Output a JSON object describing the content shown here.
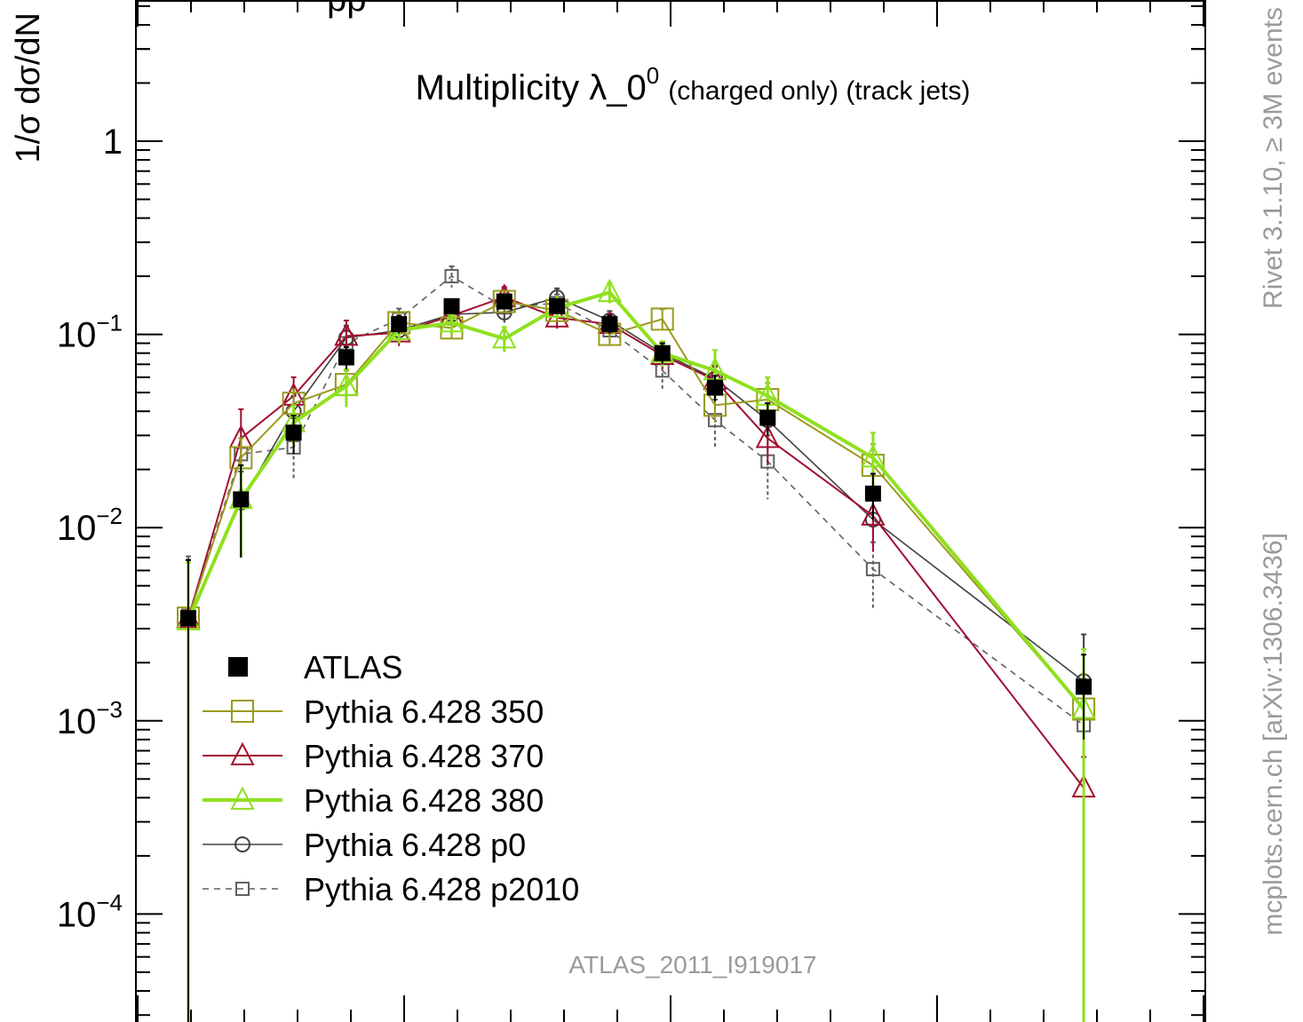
{
  "chart_data": {
    "type": "line",
    "title": "Multiplicity λ_0",
    "title_superscript": "0",
    "title_suffix": "(charged only) (track jets)",
    "header_partial": "pp",
    "ylabel": "1/σ dσ/dN",
    "y_scale": "log",
    "ylim": [
      3e-05,
      5
    ],
    "xlim": [
      0,
      21
    ],
    "y_tick_labels": [
      {
        "base": "1",
        "exp": "",
        "value": 1
      },
      {
        "base": "10",
        "exp": "−1",
        "value": 0.1
      },
      {
        "base": "10",
        "exp": "−2",
        "value": 0.01
      },
      {
        "base": "10",
        "exp": "−3",
        "value": 0.001
      },
      {
        "base": "10",
        "exp": "−4",
        "value": 0.0001
      }
    ],
    "grid": false,
    "legend_position": "bottom-left",
    "watermark": "ATLAS_2011_I919017",
    "side_text_top": "Rivet 3.1.10, ≥ 3M events",
    "side_text_bottom": "mcplots.cern.ch [arXiv:1306.3436]",
    "series": [
      {
        "name": "ATLAS",
        "color": "#000000",
        "marker": "filled-square",
        "line": "none",
        "points": [
          {
            "x": 1,
            "y": 0.0034,
            "err": [
              0.0034,
              0.0034
            ]
          },
          {
            "x": 2,
            "y": 0.014,
            "err": [
              0.007,
              0.007
            ]
          },
          {
            "x": 3,
            "y": 0.031,
            "err": [
              0.007,
              0.007
            ]
          },
          {
            "x": 4,
            "y": 0.076,
            "err": [
              0.01,
              0.01
            ]
          },
          {
            "x": 5,
            "y": 0.113,
            "err": [
              0.012,
              0.012
            ]
          },
          {
            "x": 6,
            "y": 0.14,
            "err": [
              0.012,
              0.012
            ]
          },
          {
            "x": 7,
            "y": 0.148,
            "err": [
              0.012,
              0.012
            ]
          },
          {
            "x": 8,
            "y": 0.14,
            "err": [
              0.012,
              0.012
            ]
          },
          {
            "x": 9,
            "y": 0.113,
            "err": [
              0.012,
              0.012
            ]
          },
          {
            "x": 10,
            "y": 0.08,
            "err": [
              0.01,
              0.01
            ]
          },
          {
            "x": 11,
            "y": 0.053,
            "err": [
              0.008,
              0.008
            ]
          },
          {
            "x": 12,
            "y": 0.037,
            "err": [
              0.007,
              0.007
            ]
          },
          {
            "x": 14,
            "y": 0.015,
            "err": [
              0.004,
              0.004
            ]
          },
          {
            "x": 18,
            "y": 0.0015,
            "err": [
              0.0007,
              0.0007
            ]
          }
        ]
      },
      {
        "name": "Pythia 6.428 350",
        "color": "#9a9a1e",
        "marker": "open-square",
        "line": "solid",
        "points": [
          {
            "x": 1,
            "y": 0.0034,
            "err": [
              0.0034,
              0.0034
            ]
          },
          {
            "x": 2,
            "y": 0.023,
            "err": [
              0.006,
              0.006
            ]
          },
          {
            "x": 3,
            "y": 0.044,
            "err": [
              0.008,
              0.008
            ]
          },
          {
            "x": 4,
            "y": 0.055,
            "err": [
              0.01,
              0.01
            ]
          },
          {
            "x": 5,
            "y": 0.115,
            "err": [
              0.015,
              0.015
            ]
          },
          {
            "x": 6,
            "y": 0.108,
            "err": [
              0.012,
              0.012
            ]
          },
          {
            "x": 7,
            "y": 0.148,
            "err": [
              0.015,
              0.015
            ]
          },
          {
            "x": 8,
            "y": 0.133,
            "err": [
              0.014,
              0.014
            ]
          },
          {
            "x": 9,
            "y": 0.1,
            "err": [
              0.012,
              0.012
            ]
          },
          {
            "x": 10,
            "y": 0.12,
            "err": [
              0.015,
              0.015
            ]
          },
          {
            "x": 11,
            "y": 0.043,
            "err": [
              0.008,
              0.008
            ]
          },
          {
            "x": 12,
            "y": 0.046,
            "err": [
              0.01,
              0.01
            ]
          },
          {
            "x": 14,
            "y": 0.021,
            "err": [
              0.006,
              0.006
            ]
          },
          {
            "x": 18,
            "y": 0.00115,
            "err": [
              0.0006,
              0.0006
            ]
          }
        ]
      },
      {
        "name": "Pythia 6.428 370",
        "color": "#a01030",
        "marker": "open-triangle",
        "line": "solid",
        "points": [
          {
            "x": 1,
            "y": 0.0034,
            "err": [
              0.0034,
              0.0034
            ]
          },
          {
            "x": 2,
            "y": 0.029,
            "err": [
              0.012,
              0.012
            ]
          },
          {
            "x": 3,
            "y": 0.048,
            "err": [
              0.012,
              0.012
            ]
          },
          {
            "x": 4,
            "y": 0.098,
            "err": [
              0.02,
              0.02
            ]
          },
          {
            "x": 5,
            "y": 0.102,
            "err": [
              0.015,
              0.015
            ]
          },
          {
            "x": 6,
            "y": 0.125,
            "err": [
              0.015,
              0.015
            ]
          },
          {
            "x": 7,
            "y": 0.156,
            "err": [
              0.02,
              0.02
            ]
          },
          {
            "x": 8,
            "y": 0.122,
            "err": [
              0.015,
              0.015
            ]
          },
          {
            "x": 9,
            "y": 0.113,
            "err": [
              0.014,
              0.014
            ]
          },
          {
            "x": 10,
            "y": 0.078,
            "err": [
              0.012,
              0.012
            ]
          },
          {
            "x": 11,
            "y": 0.058,
            "err": [
              0.01,
              0.01
            ]
          },
          {
            "x": 12,
            "y": 0.029,
            "err": [
              0.008,
              0.008
            ]
          },
          {
            "x": 14,
            "y": 0.0115,
            "err": [
              0.004,
              0.004
            ]
          },
          {
            "x": 18,
            "y": 0.00045,
            "err": [
              0.0002,
              0.0002
            ]
          }
        ]
      },
      {
        "name": "Pythia 6.428 380",
        "color": "#8fe01e",
        "marker": "open-triangle",
        "line": "solid-thick",
        "points": [
          {
            "x": 1,
            "y": 0.0033,
            "err": [
              0.00329,
              0.0033
            ]
          },
          {
            "x": 2,
            "y": 0.014,
            "err": [
              0.007,
              0.007
            ]
          },
          {
            "x": 3,
            "y": 0.035,
            "err": [
              0.008,
              0.008
            ]
          },
          {
            "x": 4,
            "y": 0.054,
            "err": [
              0.012,
              0.012
            ]
          },
          {
            "x": 5,
            "y": 0.105,
            "err": [
              0.015,
              0.015
            ]
          },
          {
            "x": 6,
            "y": 0.115,
            "err": [
              0.015,
              0.015
            ]
          },
          {
            "x": 7,
            "y": 0.095,
            "err": [
              0.014,
              0.014
            ]
          },
          {
            "x": 8,
            "y": 0.137,
            "err": [
              0.016,
              0.016
            ]
          },
          {
            "x": 9,
            "y": 0.165,
            "err": [
              0.02,
              0.02
            ]
          },
          {
            "x": 10,
            "y": 0.08,
            "err": [
              0.012,
              0.012
            ]
          },
          {
            "x": 11,
            "y": 0.065,
            "err": [
              0.018,
              0.018
            ]
          },
          {
            "x": 12,
            "y": 0.048,
            "err": [
              0.012,
              0.012
            ]
          },
          {
            "x": 14,
            "y": 0.023,
            "err": [
              0.008,
              0.008
            ]
          },
          {
            "x": 18,
            "y": 0.00115,
            "err": [
              0.00114,
              0.0012
            ]
          }
        ]
      },
      {
        "name": "Pythia 6.428 p0",
        "color": "#404040",
        "marker": "open-circle",
        "line": "solid-thin",
        "points": [
          {
            "x": 1,
            "y": 0.0034,
            "err": [
              0.0034,
              0.0034
            ]
          },
          {
            "x": 2,
            "y": 0.0135,
            "err": [
              0.006,
              0.006
            ]
          },
          {
            "x": 3,
            "y": 0.04,
            "err": [
              0.008,
              0.008
            ]
          },
          {
            "x": 4,
            "y": 0.096,
            "err": [
              0.015,
              0.015
            ]
          },
          {
            "x": 5,
            "y": 0.105,
            "err": [
              0.015,
              0.015
            ]
          },
          {
            "x": 6,
            "y": 0.127,
            "err": [
              0.015,
              0.015
            ]
          },
          {
            "x": 7,
            "y": 0.13,
            "err": [
              0.015,
              0.015
            ]
          },
          {
            "x": 8,
            "y": 0.155,
            "err": [
              0.018,
              0.018
            ]
          },
          {
            "x": 9,
            "y": 0.118,
            "err": [
              0.014,
              0.014
            ]
          },
          {
            "x": 10,
            "y": 0.08,
            "err": [
              0.012,
              0.012
            ]
          },
          {
            "x": 11,
            "y": 0.059,
            "err": [
              0.01,
              0.01
            ]
          },
          {
            "x": 12,
            "y": 0.036,
            "err": [
              0.008,
              0.008
            ]
          },
          {
            "x": 14,
            "y": 0.011,
            "err": [
              0.003,
              0.003
            ]
          },
          {
            "x": 18,
            "y": 0.0016,
            "err": [
              0.0012,
              0.0012
            ]
          }
        ]
      },
      {
        "name": "Pythia 6.428 p2010",
        "color": "#606060",
        "marker": "open-square-small",
        "line": "dashed",
        "points": [
          {
            "x": 1,
            "y": 0.0035,
            "err": [
              0.0034,
              0.0036
            ]
          },
          {
            "x": 2,
            "y": 0.024,
            "err": [
              0.008,
              0.008
            ]
          },
          {
            "x": 3,
            "y": 0.026,
            "err": [
              0.008,
              0.008
            ]
          },
          {
            "x": 4,
            "y": 0.09,
            "err": [
              0.015,
              0.015
            ]
          },
          {
            "x": 5,
            "y": 0.12,
            "err": [
              0.016,
              0.016
            ]
          },
          {
            "x": 6,
            "y": 0.2,
            "err": [
              0.025,
              0.025
            ]
          },
          {
            "x": 7,
            "y": 0.138,
            "err": [
              0.016,
              0.016
            ]
          },
          {
            "x": 8,
            "y": 0.145,
            "err": [
              0.016,
              0.016
            ]
          },
          {
            "x": 9,
            "y": 0.105,
            "err": [
              0.014,
              0.014
            ]
          },
          {
            "x": 10,
            "y": 0.065,
            "err": [
              0.014,
              0.014
            ]
          },
          {
            "x": 11,
            "y": 0.036,
            "err": [
              0.01,
              0.01
            ]
          },
          {
            "x": 12,
            "y": 0.022,
            "err": [
              0.008,
              0.008
            ]
          },
          {
            "x": 14,
            "y": 0.0061,
            "err": [
              0.0023,
              0.0023
            ]
          },
          {
            "x": 18,
            "y": 0.00095,
            "err": [
              0.0007,
              0.0007
            ]
          }
        ]
      }
    ]
  }
}
